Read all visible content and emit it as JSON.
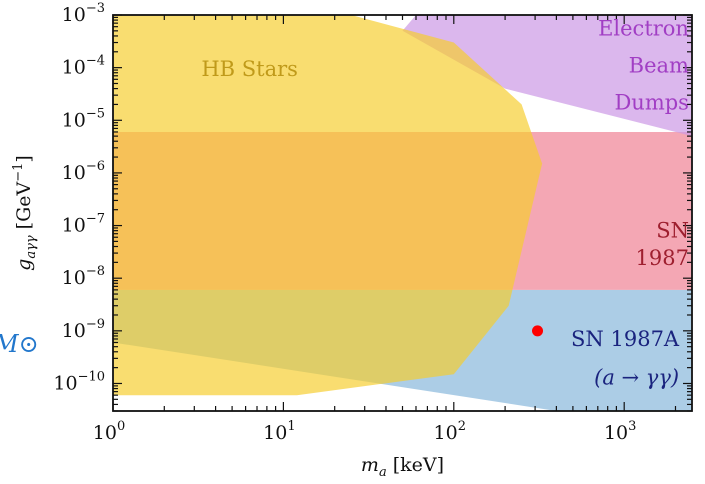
{
  "chart_data": {
    "type": "area",
    "title": "",
    "xlabel": {
      "main": "m",
      "sub": "a",
      "unit": "[keV]"
    },
    "ylabel": {
      "main": "g",
      "sub": "aγγ",
      "unit_open": "[GeV",
      "unit_exp": "−1",
      "unit_close": "]"
    },
    "x_scale": "log",
    "y_scale": "log",
    "xlim": [
      1,
      2500
    ],
    "ylim": [
      3e-11,
      0.001
    ],
    "x_ticks": [
      {
        "value": 1,
        "base": "10",
        "exp": "0"
      },
      {
        "value": 10,
        "base": "10",
        "exp": "1"
      },
      {
        "value": 100,
        "base": "10",
        "exp": "2"
      },
      {
        "value": 1000,
        "base": "10",
        "exp": "3"
      }
    ],
    "y_ticks": [
      {
        "value": 1e-10,
        "base": "10",
        "exp": "−10"
      },
      {
        "value": 1e-09,
        "base": "10",
        "exp": "−9"
      },
      {
        "value": 1e-08,
        "base": "10",
        "exp": "−8"
      },
      {
        "value": 1e-07,
        "base": "10",
        "exp": "−7"
      },
      {
        "value": 1e-06,
        "base": "10",
        "exp": "−6"
      },
      {
        "value": 1e-05,
        "base": "10",
        "exp": "−5"
      },
      {
        "value": 0.0001,
        "base": "10",
        "exp": "−4"
      },
      {
        "value": 0.001,
        "base": "10",
        "exp": "−3"
      }
    ],
    "grid": false,
    "series": [
      {
        "name": "SN 1987A (a → γγ)",
        "color": "#7fb2d8",
        "opacity": 0.65,
        "points": [
          [
            1,
            6e-09
          ],
          [
            2500,
            6e-09
          ],
          [
            2500,
            3e-11
          ],
          [
            400,
            3e-11
          ],
          [
            1,
            6e-10
          ]
        ]
      },
      {
        "name": "SN 1987",
        "color": "#f0899b",
        "opacity": 0.75,
        "points": [
          [
            1,
            6e-06
          ],
          [
            2500,
            6e-06
          ],
          [
            2500,
            6e-09
          ],
          [
            1,
            6e-09
          ]
        ]
      },
      {
        "name": "Electron Beam Dumps",
        "color": "#cc99e6",
        "opacity": 0.7,
        "points": [
          [
            60,
            0.001
          ],
          [
            2500,
            0.001
          ],
          [
            2500,
            5e-06
          ],
          [
            200,
            4e-05
          ],
          [
            50,
            0.0005
          ]
        ]
      },
      {
        "name": "HB Stars",
        "color": "#f6cd2c",
        "opacity": 0.68,
        "points": [
          [
            1,
            0.001
          ],
          [
            25,
            0.001
          ],
          [
            100,
            0.0003
          ],
          [
            250,
            2e-05
          ],
          [
            330,
            1.5e-06
          ],
          [
            210,
            3e-09
          ],
          [
            100,
            1.5e-10
          ],
          [
            12,
            6e-11
          ],
          [
            1,
            6e-11
          ]
        ]
      }
    ],
    "annotations": [
      {
        "lines": [
          "Electron",
          "Beam",
          "Dumps"
        ],
        "color": "#a13ec4",
        "anchor": "end",
        "x": 2400,
        "y_lines": [
          0.00055,
          0.00011,
          2.2e-05
        ]
      },
      {
        "lines": [
          "HB Stars"
        ],
        "color": "#c09a1a",
        "anchor": "start",
        "x": 3.3,
        "y_lines": [
          9.5e-05
        ]
      },
      {
        "lines": [
          "SN",
          "1987"
        ],
        "color": "#9e1f2f",
        "anchor": "end",
        "x": 2400,
        "y_lines": [
          8e-08,
          2.4e-08
        ]
      },
      {
        "lines": [
          "SN 1987A",
          "(a → γγ)"
        ],
        "color": "#1a237e",
        "anchor": "end",
        "x": 2100,
        "y_lines": [
          7e-10,
          1.3e-10
        ]
      }
    ],
    "marker": {
      "x": 310,
      "y": 1e-09,
      "color": "#ff0000"
    },
    "edge_fragment": {
      "text": "M⊙",
      "color": "#2277cc"
    }
  }
}
